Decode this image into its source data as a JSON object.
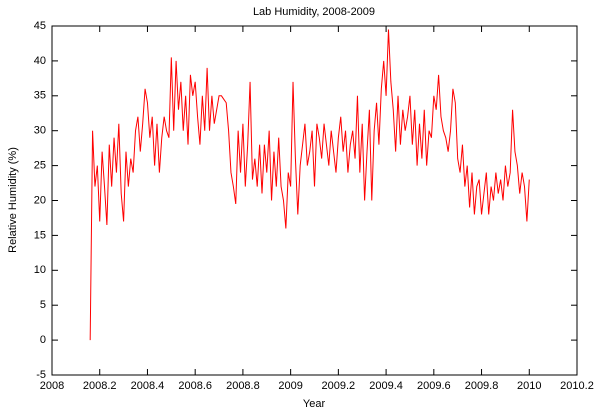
{
  "chart_data": {
    "type": "line",
    "title": "Lab Humidity, 2008-2009",
    "x_label": "Year",
    "y_label": "Relative Humidity (%)",
    "x": [
      2008.16,
      2008.17,
      2008.18,
      2008.19,
      2008.2,
      2008.21,
      2008.22,
      2008.23,
      2008.24,
      2008.25,
      2008.26,
      2008.27,
      2008.28,
      2008.29,
      2008.3,
      2008.31,
      2008.32,
      2008.33,
      2008.34,
      2008.35,
      2008.36,
      2008.37,
      2008.38,
      2008.39,
      2008.4,
      2008.41,
      2008.42,
      2008.43,
      2008.44,
      2008.45,
      2008.46,
      2008.47,
      2008.48,
      2008.49,
      2008.5,
      2008.51,
      2008.52,
      2008.53,
      2008.54,
      2008.55,
      2008.56,
      2008.57,
      2008.58,
      2008.59,
      2008.6,
      2008.61,
      2008.62,
      2008.63,
      2008.64,
      2008.65,
      2008.66,
      2008.67,
      2008.68,
      2008.69,
      2008.7,
      2008.71,
      2008.72,
      2008.73,
      2008.74,
      2008.75,
      2008.76,
      2008.77,
      2008.78,
      2008.79,
      2008.8,
      2008.81,
      2008.82,
      2008.83,
      2008.84,
      2008.85,
      2008.86,
      2008.87,
      2008.88,
      2008.89,
      2008.9,
      2008.91,
      2008.92,
      2008.93,
      2008.94,
      2008.95,
      2008.96,
      2008.97,
      2008.98,
      2008.99,
      2009.0,
      2009.01,
      2009.02,
      2009.03,
      2009.04,
      2009.05,
      2009.06,
      2009.07,
      2009.08,
      2009.09,
      2009.1,
      2009.11,
      2009.12,
      2009.13,
      2009.14,
      2009.15,
      2009.16,
      2009.17,
      2009.18,
      2009.19,
      2009.2,
      2009.21,
      2009.22,
      2009.23,
      2009.24,
      2009.25,
      2009.26,
      2009.27,
      2009.28,
      2009.29,
      2009.3,
      2009.31,
      2009.32,
      2009.33,
      2009.34,
      2009.35,
      2009.36,
      2009.37,
      2009.38,
      2009.39,
      2009.4,
      2009.41,
      2009.42,
      2009.43,
      2009.44,
      2009.45,
      2009.46,
      2009.47,
      2009.48,
      2009.49,
      2009.5,
      2009.51,
      2009.52,
      2009.53,
      2009.54,
      2009.55,
      2009.56,
      2009.57,
      2009.58,
      2009.59,
      2009.6,
      2009.61,
      2009.62,
      2009.63,
      2009.64,
      2009.65,
      2009.66,
      2009.67,
      2009.68,
      2009.69,
      2009.7,
      2009.71,
      2009.72,
      2009.73,
      2009.74,
      2009.75,
      2009.76,
      2009.77,
      2009.78,
      2009.79,
      2009.8,
      2009.81,
      2009.82,
      2009.83,
      2009.84,
      2009.85,
      2009.86,
      2009.87,
      2009.88,
      2009.89,
      2009.9,
      2009.91,
      2009.92,
      2009.93,
      2009.94,
      2009.95,
      2009.96,
      2009.97,
      2009.98,
      2009.99,
      2010.0
    ],
    "series": [
      {
        "color": "#ff0000",
        "values": [
          0,
          30,
          22,
          25,
          17,
          27,
          22,
          16.5,
          28,
          22,
          29,
          24,
          31,
          21,
          17,
          27,
          22,
          26,
          24,
          30,
          32,
          27,
          31,
          36,
          34,
          29,
          32,
          25,
          31,
          24,
          29,
          32,
          30,
          29,
          40.5,
          30,
          40,
          33,
          37,
          30,
          35,
          28,
          38,
          35,
          37,
          32,
          28,
          35,
          30,
          39,
          30,
          35,
          31,
          33,
          35,
          35,
          34.5,
          34,
          30,
          24,
          22,
          19.5,
          30,
          24,
          31,
          22,
          28,
          37,
          23,
          26,
          22,
          28,
          21,
          28,
          24,
          30,
          20,
          27,
          22,
          29,
          22,
          20,
          16,
          24,
          22,
          37,
          26,
          18,
          25,
          28,
          31,
          25,
          27,
          30,
          22,
          31,
          29,
          26,
          31,
          28,
          25,
          30,
          27,
          24,
          29,
          32,
          27,
          30,
          24,
          28,
          30,
          26,
          35,
          24,
          31,
          20,
          27,
          33,
          20,
          30,
          34,
          28,
          36,
          40,
          35,
          44.5,
          37,
          33,
          27,
          35,
          28,
          33,
          30,
          32,
          35,
          28,
          33,
          25,
          31,
          26,
          33,
          25,
          30,
          29,
          35,
          33,
          38,
          32,
          30,
          29,
          27,
          30,
          36,
          34,
          26,
          24,
          28,
          22,
          25,
          19,
          24,
          18,
          22,
          23,
          18,
          21,
          24,
          18,
          22,
          20,
          24,
          21,
          23,
          20,
          25,
          22,
          24,
          33,
          27,
          25,
          21,
          24,
          22,
          17,
          23
        ]
      }
    ],
    "xlim": [
      2008,
      2010.2
    ],
    "xticks": [
      2008,
      2008.2,
      2008.4,
      2008.6,
      2008.8,
      2009,
      2009.2,
      2009.4,
      2009.6,
      2009.8,
      2010,
      2010.2
    ],
    "ylim": [
      -5,
      45
    ],
    "yticks": [
      -5,
      0,
      5,
      10,
      15,
      20,
      25,
      30,
      35,
      40,
      45
    ],
    "grid": false
  }
}
